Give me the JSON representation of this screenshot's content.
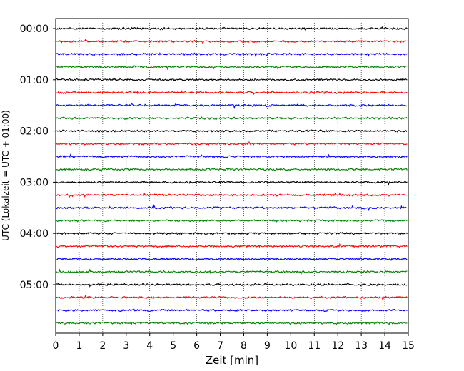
{
  "chart_data": {
    "type": "line",
    "title": "",
    "xlabel": "Zeit  [min]",
    "ylabel": "UTC (Lokalzeit = UTC + 01:00)",
    "xlim": [
      0,
      15
    ],
    "x_ticks": [
      "0",
      "1",
      "2",
      "3",
      "4",
      "5",
      "6",
      "7",
      "8",
      "9",
      "10",
      "11",
      "12",
      "13",
      "14",
      "15"
    ],
    "y_ticks": [
      "00:00",
      "01:00",
      "02:00",
      "03:00",
      "04:00",
      "05:00"
    ],
    "grid": "vertical-dotted",
    "trace_colors": [
      "#000000",
      "#ff0000",
      "#0000ff",
      "#007f00"
    ],
    "traces_per_hour": 4,
    "trace_count": 24,
    "trace_start_times": [
      "00:00",
      "00:15",
      "00:30",
      "00:45",
      "01:00",
      "01:15",
      "01:30",
      "01:45",
      "02:00",
      "02:15",
      "02:30",
      "02:45",
      "03:00",
      "03:15",
      "03:30",
      "03:45",
      "04:00",
      "04:15",
      "04:30",
      "04:45",
      "05:00",
      "05:15",
      "05:30",
      "05:45"
    ],
    "data_note_amplitude": "relative"
  }
}
